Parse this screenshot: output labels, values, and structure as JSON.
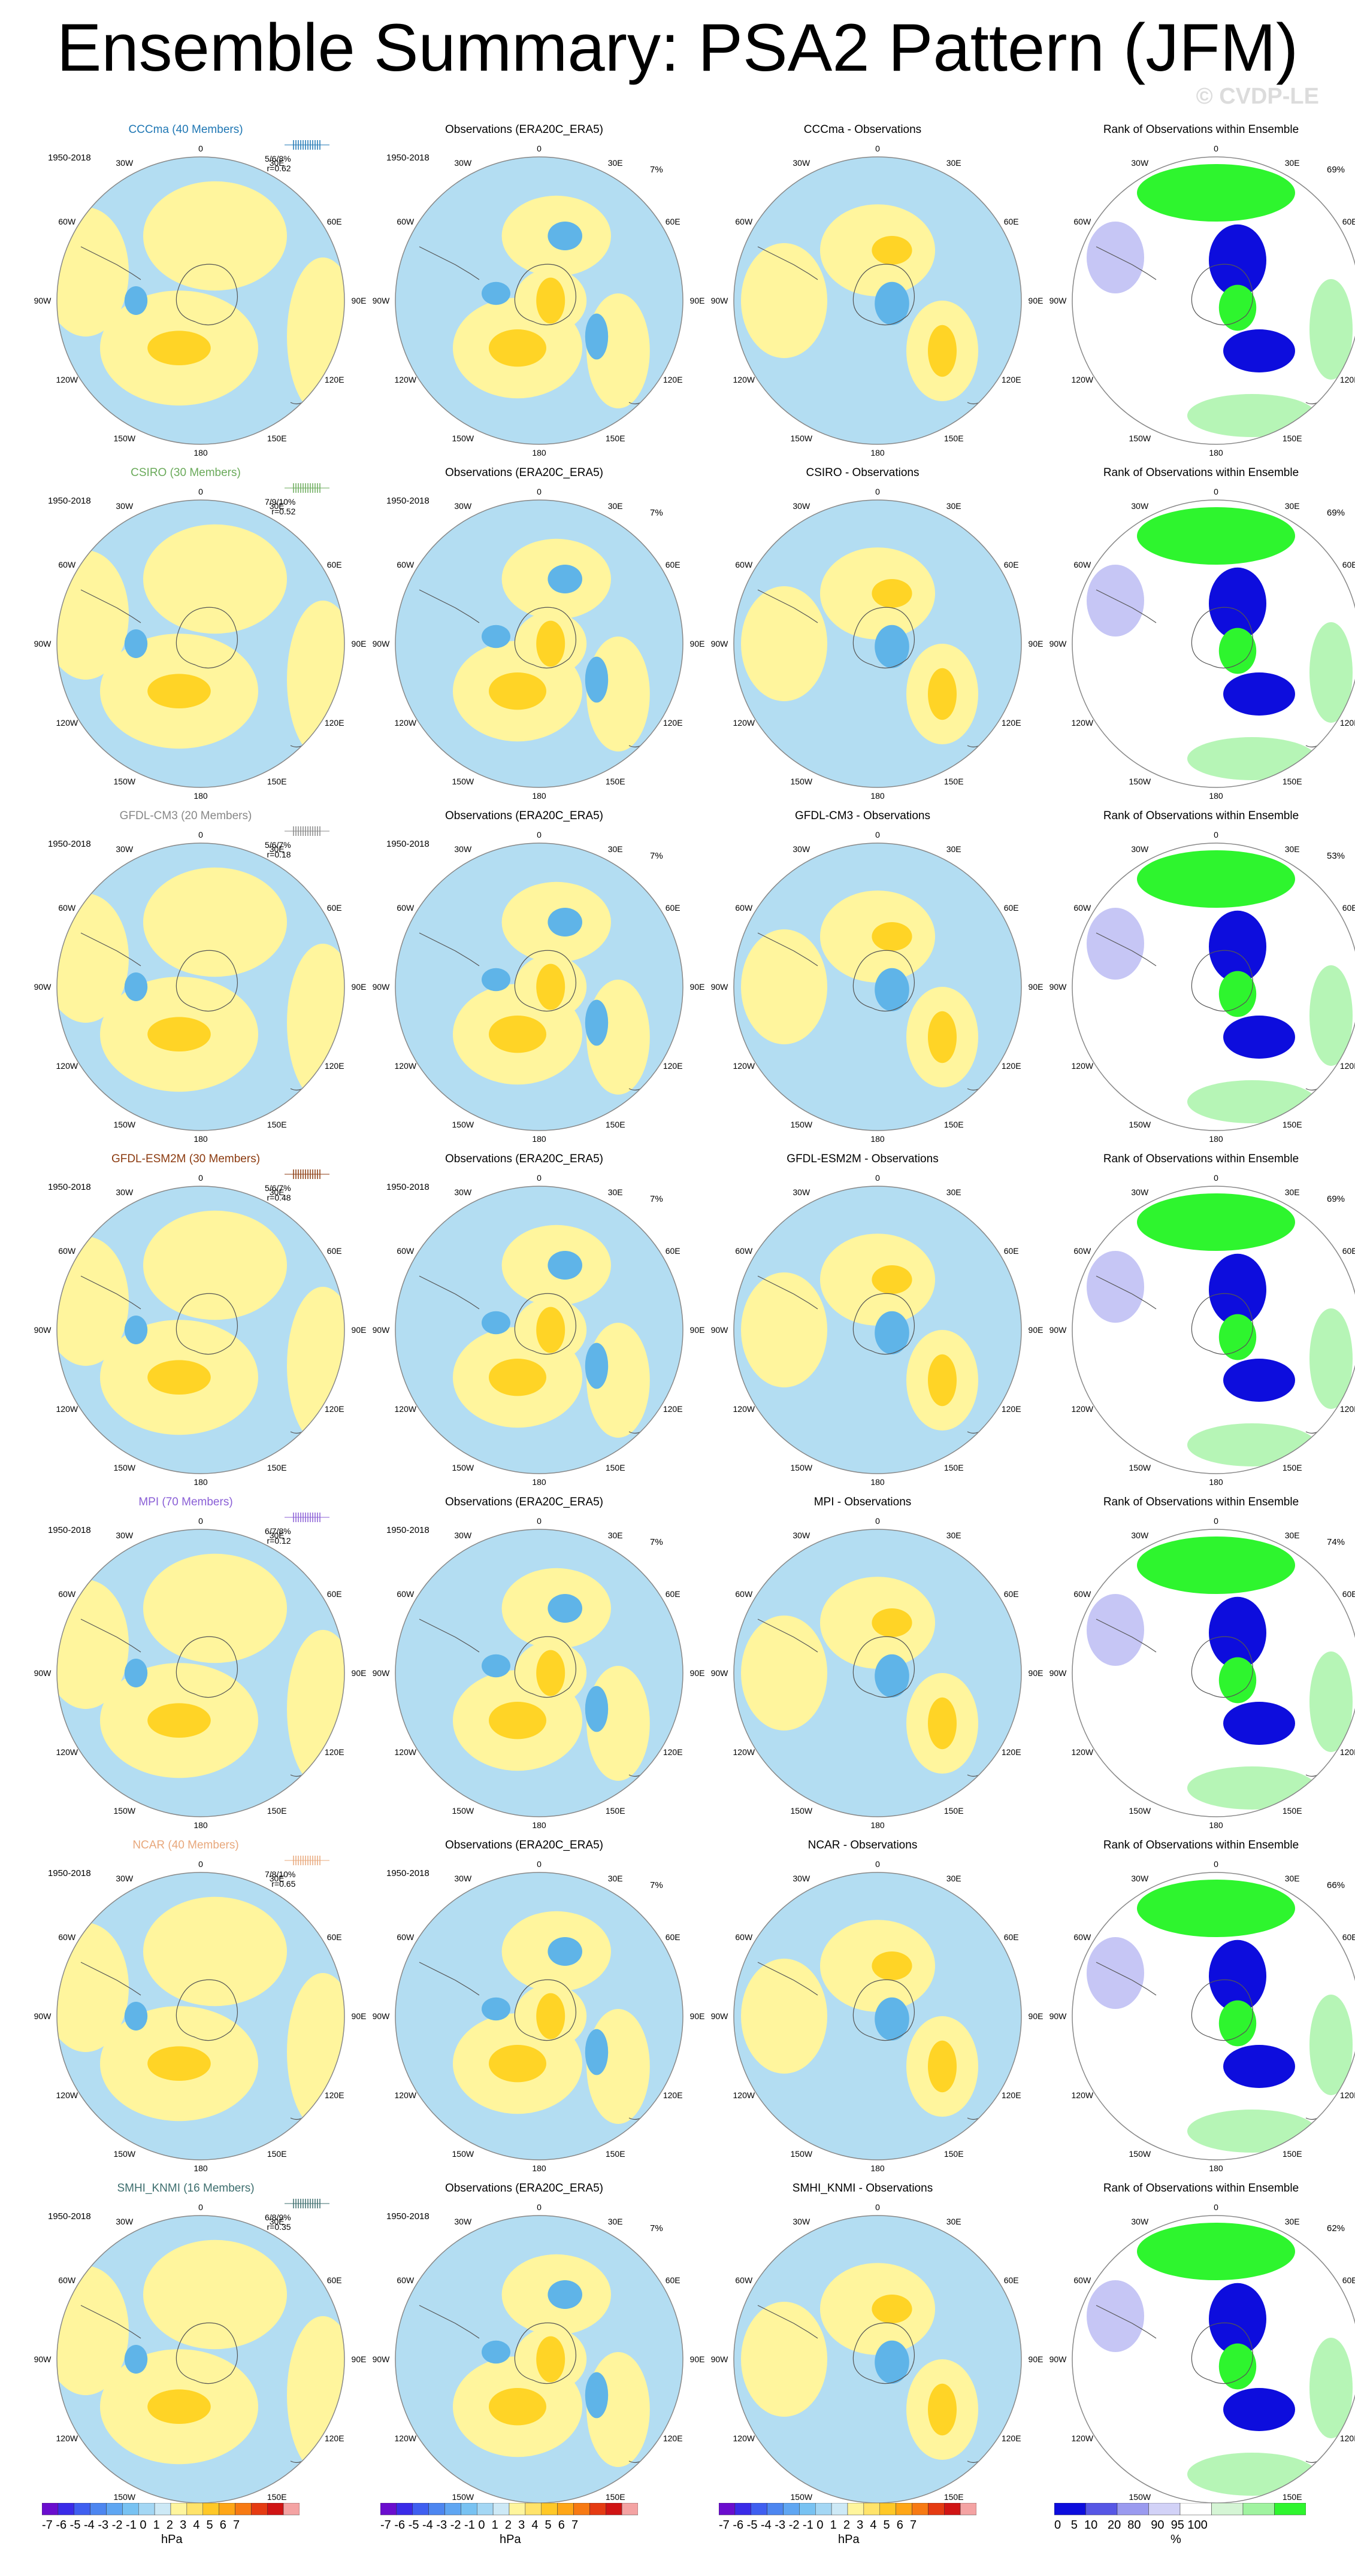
{
  "title": "Ensemble Summary: PSA2 Pattern (JFM)",
  "credit": "© CVDP-LE",
  "years": "1950-2018",
  "obs_title": "Observations (ERA20C_ERA5)",
  "rank_title": "Rank of Observations within Ensemble",
  "obs_pct": "7%",
  "lon_labels": {
    "l0": "0",
    "l30w": "30W",
    "l30e": "30E",
    "l60w": "60W",
    "l60e": "60E",
    "l90w": "90W",
    "l90e": "90E",
    "l120w": "120W",
    "l120e": "120E",
    "l150w": "150W",
    "l150e": "150E",
    "l180": "180"
  },
  "colors": {
    "blue_light": "#b3ddf2",
    "blue_mid": "#5fb4e8",
    "yellow_light": "#fff59d",
    "yellow_mid": "#ffd426",
    "rank_green": "#2ef52e",
    "rank_lightgreen": "#b6f5b6",
    "rank_blue": "#0d0ddd",
    "rank_lightblue": "#c6c6f5"
  },
  "rows": [
    {
      "model": "CCCma (40 Members)",
      "diff": "CCCma - Observations",
      "pct_text": "5/6/8%",
      "r_text": "r=0.62",
      "rank_pct": "69%",
      "color": "#1f77b4"
    },
    {
      "model": "CSIRO (30 Members)",
      "diff": "CSIRO - Observations",
      "pct_text": "7/9/10%",
      "r_text": "r=0.52",
      "rank_pct": "69%",
      "color": "#6aaa5a"
    },
    {
      "model": "GFDL-CM3 (20 Members)",
      "diff": "GFDL-CM3 - Observations",
      "pct_text": "5/6/7%",
      "r_text": "r=0.18",
      "rank_pct": "53%",
      "color": "#888888"
    },
    {
      "model": "GFDL-ESM2M (30 Members)",
      "diff": "GFDL-ESM2M - Observations",
      "pct_text": "5/6/7%",
      "r_text": "r=0.48",
      "rank_pct": "69%",
      "color": "#8b3a0f"
    },
    {
      "model": "MPI (70 Members)",
      "diff": "MPI - Observations",
      "pct_text": "6/7/8%",
      "r_text": "r=0.12",
      "rank_pct": "74%",
      "color": "#8a5fd6"
    },
    {
      "model": "NCAR (40 Members)",
      "diff": "NCAR - Observations",
      "pct_text": "7/8/10%",
      "r_text": "r=0.65",
      "rank_pct": "66%",
      "color": "#e8a87c"
    },
    {
      "model": "SMHI_KNMI (16 Members)",
      "diff": "SMHI_KNMI - Observations",
      "pct_text": "6/8/9%",
      "r_text": "r=0.35",
      "rank_pct": "62%",
      "color": "#3d6e6e"
    }
  ],
  "colorbar_hpa": {
    "labels": "-7 -6 -5 -4 -3 -2 -1 0  1  2  3  4  5  6  7",
    "unit": "hPa",
    "colors": [
      "#6a0dce",
      "#3a2be8",
      "#3f5ff0",
      "#4d86f0",
      "#5fa6f2",
      "#78c2f2",
      "#a4d7f4",
      "#cde9f6",
      "#fff59d",
      "#ffe36a",
      "#ffc827",
      "#ffa616",
      "#f77a13",
      "#e53b12",
      "#d01414",
      "#f4a3a3"
    ]
  },
  "colorbar_rank": {
    "labels": "0   5  10   20  80   90  95 100",
    "unit": "%",
    "colors": [
      "#0d0ddd",
      "#5757e5",
      "#9a9aef",
      "#d2d2f7",
      "#ffffff",
      "#d5f5d5",
      "#a0f3a0",
      "#2ef52e"
    ]
  }
}
